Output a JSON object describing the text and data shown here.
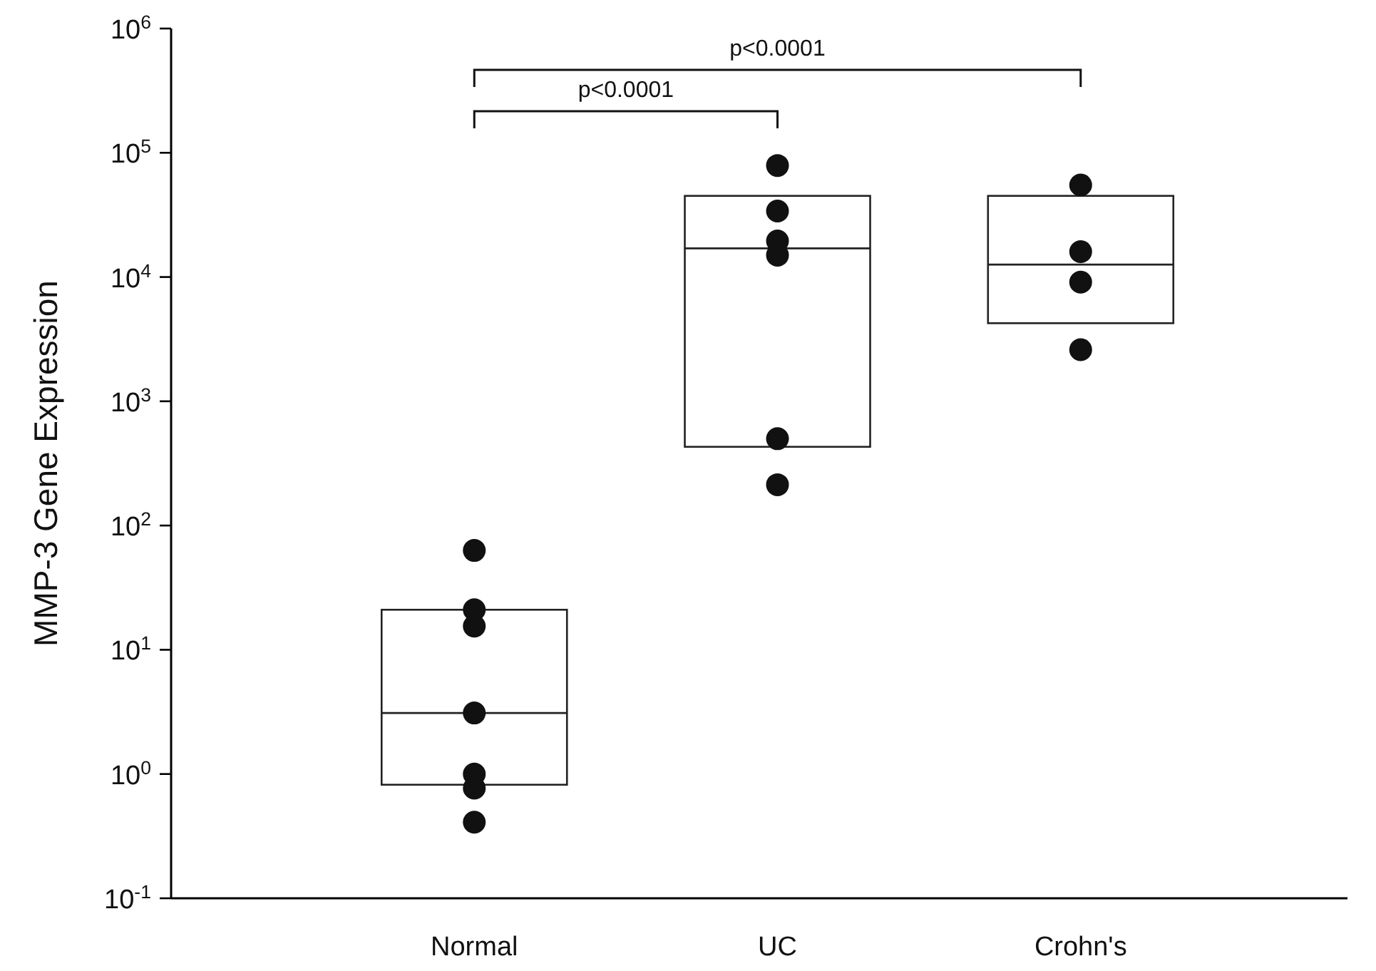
{
  "chart_data": {
    "type": "box",
    "ylabel": "MMP-3 Gene Expression",
    "categories": [
      "Normal",
      "UC",
      "Crohn's"
    ],
    "log": "y",
    "ylim": [
      0.1,
      1000000
    ],
    "yticks": [
      {
        "value": 0.1,
        "label": "10$^{-1}$"
      },
      {
        "value": 1,
        "label": "10$^{0}$"
      },
      {
        "value": 10,
        "label": "10$^{1}$"
      },
      {
        "value": 100,
        "label": "10$^{2}$"
      },
      {
        "value": 1000,
        "label": "10$^{3}$"
      },
      {
        "value": 10000,
        "label": "10$^{4}$"
      },
      {
        "value": 100000,
        "label": "10$^{5}$"
      },
      {
        "value": 1000000,
        "label": "10$^{6}$"
      }
    ],
    "boxes": [
      {
        "low": 0.82,
        "q1": 0.82,
        "median": 3.1,
        "q3": 21,
        "high": 21
      },
      {
        "low": 430,
        "q1": 430,
        "median": 17000,
        "q3": 45000,
        "high": 45000
      },
      {
        "low": 4250,
        "q1": 4250,
        "median": 12600,
        "q3": 45000,
        "high": 45000
      }
    ],
    "series": [
      {
        "type": "scatter",
        "color": "#111111",
        "marker": "circle",
        "x": [
          "Normal",
          "Normal",
          "Normal",
          "Normal",
          "Normal",
          "Normal",
          "Normal",
          "UC",
          "UC",
          "UC",
          "UC",
          "UC",
          "UC",
          "Crohn's",
          "Crohn's",
          "Crohn's",
          "Crohn's"
        ],
        "values": [
          63,
          21,
          15.5,
          3.1,
          1.0,
          0.77,
          0.41,
          79000,
          34000,
          19500,
          15000,
          500,
          213,
          55000,
          16000,
          9100,
          2600
        ]
      }
    ],
    "annotations": [
      "p<0.0001",
      "p<0.0001"
    ],
    "grid": false
  }
}
